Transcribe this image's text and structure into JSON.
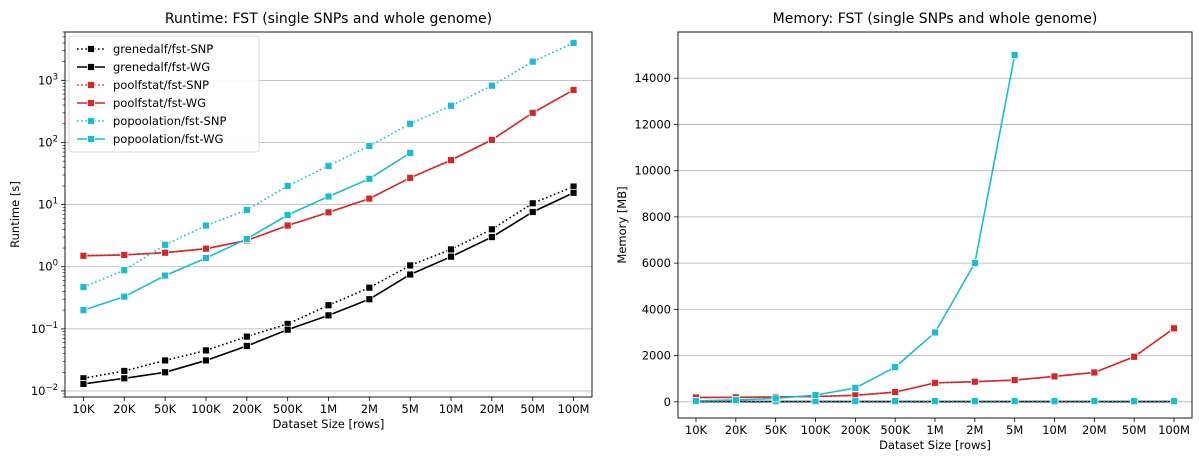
{
  "chart_data": [
    {
      "type": "line",
      "title": "Runtime:  FST (single SNPs and whole genome)",
      "xlabel": "Dataset Size  [rows]",
      "ylabel": "Runtime  [s]",
      "yscale": "log",
      "ylim": [
        0.008,
        6000
      ],
      "yticks": [
        0.01,
        0.1,
        1,
        10,
        100,
        1000
      ],
      "ytick_labels": [
        {
          "base": "10",
          "exp": "−2"
        },
        {
          "base": "10",
          "exp": "−1"
        },
        {
          "base": "10",
          "exp": "0"
        },
        {
          "base": "10",
          "exp": "1"
        },
        {
          "base": "10",
          "exp": "2"
        },
        {
          "base": "10",
          "exp": "3"
        }
      ],
      "grid": "horizontal",
      "legend": "top-left",
      "categories": [
        "10K",
        "20K",
        "50K",
        "100K",
        "200K",
        "500K",
        "1M",
        "2M",
        "5M",
        "10M",
        "20M",
        "50M",
        "100M"
      ],
      "series": [
        {
          "name": "grenedalf/fst-SNP",
          "color": "#000000",
          "style": "dotted",
          "values": [
            0.016,
            0.021,
            0.031,
            0.045,
            0.075,
            0.12,
            0.24,
            0.46,
            1.05,
            1.9,
            4.0,
            10.5,
            19.5
          ]
        },
        {
          "name": "grenedalf/fst-WG",
          "color": "#000000",
          "style": "solid",
          "values": [
            0.013,
            0.016,
            0.02,
            0.031,
            0.053,
            0.097,
            0.165,
            0.3,
            0.75,
            1.45,
            3.0,
            7.6,
            15.5
          ]
        },
        {
          "name": "poolfstat/fst-SNP",
          "color": "#d62728",
          "style": "dotted",
          "values": [
            1.52,
            1.55,
            1.7,
            1.95,
            2.65,
            4.6,
            7.5,
            12.5,
            27,
            52,
            110,
            300,
            700
          ]
        },
        {
          "name": "poolfstat/fst-WG",
          "color": "#d62728",
          "style": "solid",
          "values": [
            1.5,
            1.55,
            1.68,
            1.95,
            2.65,
            4.6,
            7.5,
            12.5,
            27,
            52,
            110,
            300,
            700
          ]
        },
        {
          "name": "popoolation/fst-SNP",
          "color": "#17becf",
          "style": "dotted",
          "values": [
            0.47,
            0.88,
            2.25,
            4.6,
            8.2,
            20,
            42,
            88,
            200,
            390,
            820,
            2000,
            4000
          ]
        },
        {
          "name": "popoolation/fst-WG",
          "color": "#17becf",
          "style": "solid",
          "values": [
            0.2,
            0.33,
            0.72,
            1.38,
            2.8,
            6.8,
            13.5,
            26,
            68,
            null,
            null,
            null,
            null
          ]
        }
      ]
    },
    {
      "type": "line",
      "title": "Memory:  FST (single SNPs and whole genome)",
      "xlabel": "Dataset Size  [rows]",
      "ylabel": "Memory  [MB]",
      "yscale": "linear",
      "ylim": [
        -700,
        16000
      ],
      "yticks": [
        0,
        2000,
        4000,
        6000,
        8000,
        10000,
        12000,
        14000
      ],
      "grid": "horizontal",
      "categories": [
        "10K",
        "20K",
        "50K",
        "100K",
        "200K",
        "500K",
        "1M",
        "2M",
        "5M",
        "10M",
        "20M",
        "50M",
        "100M"
      ],
      "series": [
        {
          "name": "grenedalf/fst-SNP",
          "color": "#000000",
          "style": "dotted",
          "values": [
            10,
            10,
            10,
            10,
            10,
            10,
            10,
            10,
            10,
            10,
            10,
            10,
            10
          ]
        },
        {
          "name": "grenedalf/fst-WG",
          "color": "#000000",
          "style": "solid",
          "values": [
            10,
            10,
            10,
            10,
            10,
            10,
            10,
            10,
            10,
            10,
            10,
            10,
            10
          ]
        },
        {
          "name": "poolfstat/fst-SNP",
          "color": "#d62728",
          "style": "dotted",
          "values": [
            190,
            195,
            210,
            230,
            280,
            420,
            820,
            870,
            940,
            1100,
            1270,
            1950,
            3180
          ]
        },
        {
          "name": "poolfstat/fst-WG",
          "color": "#d62728",
          "style": "solid",
          "values": [
            190,
            195,
            210,
            230,
            280,
            420,
            820,
            870,
            940,
            1100,
            1270,
            1950,
            3180
          ]
        },
        {
          "name": "popoolation/fst-SNP",
          "color": "#17becf",
          "style": "dotted",
          "values": [
            30,
            30,
            30,
            30,
            30,
            30,
            30,
            30,
            30,
            30,
            30,
            30,
            30
          ]
        },
        {
          "name": "popoolation/fst-WG",
          "color": "#17becf",
          "style": "solid",
          "values": [
            40,
            80,
            150,
            290,
            600,
            1500,
            3000,
            6000,
            15000,
            null,
            null,
            null,
            null
          ]
        }
      ]
    }
  ]
}
